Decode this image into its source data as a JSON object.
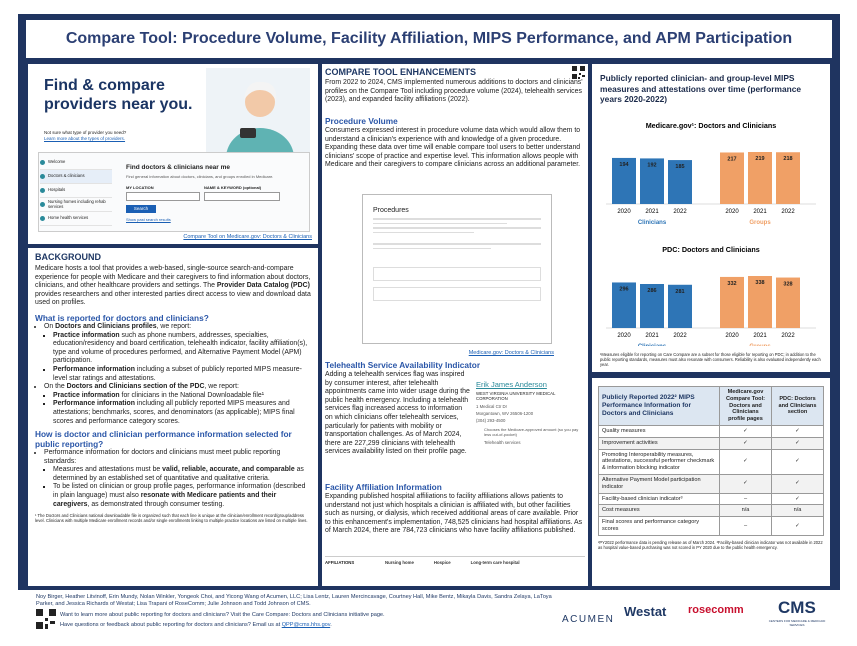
{
  "title": "Compare Tool: Procedure Volume, Facility Affiliation, MIPS Performance, and APM Participation",
  "find": {
    "heading": "Find & compare providers near you.",
    "question": "Not sure what type of provider you need?",
    "learn": "Learn more about the types of providers.",
    "nav": [
      "Welcome",
      "Doctors & clinicians",
      "Hospitals",
      "Nursing homes including rehab services",
      "Home health services"
    ],
    "search_title": "Find doctors & clinicians near me",
    "search_sub": "Find general information about doctors, clinicians, and groups enrolled in Medicare.",
    "location": "MY LOCATION",
    "keyword": "NAME & KEYWORD (optional)",
    "button": "Search",
    "past": "Show past search results",
    "caption": "Compare Tool on Medicare.gov: Doctors & Clinicians"
  },
  "background": {
    "heading": "BACKGROUND",
    "intro": [
      "Medicare hosts a tool that provides a web-based, single-source search-and-compare experience for people with Medicare and their caregivers to find information about doctors, clinicians, and other healthcare providers and settings. The ",
      {
        "bold": "Provider Data Catalog (PDC)"
      },
      " provides researchers and other interested parties direct access to view and download data used on profiles."
    ],
    "q1": "What is reported for doctors and clinicians?",
    "q1_items": [
      {
        "text": [
          "On ",
          {
            "bold": "Doctors and Clinicians profiles"
          },
          ", we report:"
        ],
        "sub": [
          [
            {
              "bold": "Practice information"
            },
            " such as phone numbers, addresses, specialties, education/residency and board certification, telehealth indicator, facility affiliation(s), type and volume of procedures performed, and Alternative Payment Model (APM) participation."
          ],
          [
            {
              "bold": "Performance information"
            },
            " including a subset of publicly reported MIPS measure-level star ratings and attestations."
          ]
        ]
      },
      {
        "text": [
          "On the ",
          {
            "bold": "Doctors and Clinicians section of the PDC"
          },
          ", we report:"
        ],
        "sub": [
          [
            {
              "bold": "Practice information"
            },
            " for clinicians in the National Downloadable file¹"
          ],
          [
            {
              "bold": "Performance information"
            },
            " including all publicly reported MIPS measures and attestations; benchmarks, scores, and denominators (as applicable); MIPS final scores and performance category scores."
          ]
        ]
      }
    ],
    "q2": "How is doctor and clinician performance information selected for public reporting?",
    "q2_items": [
      {
        "text": [
          "Performance information for doctors and clinicians must meet public reporting standards:"
        ],
        "sub": [
          [
            "Measures and attestations must be ",
            {
              "bold": "valid, reliable, accurate, and comparable"
            },
            " as determined by an established set of quantitative and qualitative criteria."
          ],
          [
            "To be listed on clinician or group profile pages, performance information (described in plain language) must also ",
            {
              "bold": "resonate with Medicare patients and their caregivers"
            },
            ", as demonstrated through consumer testing."
          ]
        ]
      }
    ],
    "footnote": "¹ The Doctors and Clinicians national downloadable file is organized such that each line is unique at the clinician/enrollment record/group/address level. Clinicians with multiple Medicare enrollment records and/or single enrollments linking to multiple practice locations are listed on multiple lines."
  },
  "enhancements": {
    "heading": "COMPARE TOOL ENHANCEMENTS",
    "intro": "From 2022 to 2024, CMS implemented numerous additions to doctors and clinicians' profiles on the Compare Tool including procedure volume (2024), telehealth services (2023), and expanded facility affiliations (2022).",
    "pv_heading": "Procedure Volume",
    "pv_text": "Consumers expressed interest in procedure volume data which would allow them to understand a clinician's experience with and knowledge of a given procedure. Expanding these data over time will enable compare tool users to better understand clinicians' scope of practice and expertise level. This information allows people with Medicare and their caregivers to compare clinicians across an additional parameter.",
    "pv_shot_title": "Procedures",
    "pv_caption": "Medicare.gov: Doctors & Clinicians",
    "th_heading": "Telehealth Service Availability Indicator",
    "th_text": "Adding a telehealth services flag was inspired by consumer interest, after telehealth appointments came into wider usage during the public health emergency. Including a telehealth services flag increased access to information on which clinicians offer telehealth services, particularly for patients with mobility or transportation challenges. As of March 2024, there are 227,299 clinicians with telehealth services availability listed on their profile page.",
    "card": {
      "name": "Erik James Anderson",
      "org": "WEST VIRGINIA UNIVERSITY MEDICAL CORPORATION",
      "address": "1 Medical Ctr Dr",
      "city": "Morgantown, WV 26506-1200",
      "phone": "(304) 293-4500",
      "assign": "Chooses the Medicare-approved amount (so you pay less out-of-pocket)",
      "telehealth": "Telehealth services"
    },
    "fa_heading": "Facility Affiliation Information",
    "fa_text": "Expanding published hospital affiliations to facility affiliations allows patients to understand not just which hospitals a clinician is affiliated with, but other facilities such as nursing, or dialysis, which received additional areas of care available. Prior to this enhancement's implementation, 748,525 clinicians had hospital affiliations. As of March 2024, there are 784,723 clinicians who have facility affiliations published.",
    "aff_label": "AFFILIATIONS",
    "aff_types": [
      "Nursing home",
      "Hospice",
      "Long-term care hospital"
    ]
  },
  "mips": {
    "heading": "Publicly reported clinician- and group-level MIPS measures and attestations over time (performance years 2020-2022)",
    "footnote": "¹Measures eligible for reporting on Care Compare are a subset for those eligible for reporting on PDC; in addition to the public reporting standards, measures must also resonate with consumers. Reliability is also evaluated independently each year."
  },
  "chart_data": [
    {
      "type": "bar",
      "title": "Medicare.gov¹: Doctors and Clinicians",
      "categories": [
        "2020",
        "2021",
        "2022"
      ],
      "series": [
        {
          "name": "Clinicians",
          "color": "#2e75b6",
          "values": [
            194,
            192,
            185
          ]
        },
        {
          "name": "Groups",
          "color": "#f0a066",
          "values": [
            217,
            219,
            218
          ]
        }
      ]
    },
    {
      "type": "bar",
      "title": "PDC: Doctors and Clinicians",
      "categories": [
        "2020",
        "2021",
        "2022"
      ],
      "series": [
        {
          "name": "Clinicians",
          "color": "#2e75b6",
          "values": [
            296,
            286,
            281
          ]
        },
        {
          "name": "Groups",
          "color": "#f0a066",
          "values": [
            332,
            338,
            328
          ]
        }
      ]
    }
  ],
  "table": {
    "header": [
      "Publicly Reported 2022² MIPS Performance Information for Doctors and Clinicians",
      "Medicare.gov Compare Tool: Doctors and Clinicians profile pages",
      "PDC: Doctors and Clinicians section"
    ],
    "rows": [
      [
        "Quality measures",
        "✓",
        "✓"
      ],
      [
        "Improvement activities",
        "✓",
        "✓"
      ],
      [
        "Promoting Interoperability measures, attestations, successful performer checkmark & information blocking indicator",
        "✓",
        "✓"
      ],
      [
        "Alternative Payment Model participation indicator",
        "✓",
        "✓"
      ],
      [
        "Facility-based clinician indicator³",
        "–",
        "✓"
      ],
      [
        "Cost measures",
        "n/a",
        "n/a"
      ],
      [
        "Final scores and performance category scores",
        "–",
        "✓"
      ]
    ],
    "footnote": "²PY2022 performance data is pending release as of March 2024. ³Facility-based clinician indicator was not available in 2022 as hospital value-based purchasing was not scored in PY 2020 due to the public health emergency."
  },
  "footer": {
    "authors": "Noy Birger, Heather Litvinoff, Erin Mundy, Nolan Winkler, Yongeok Choi, and Yicong Wang of Acumen, LLC; Lisa Lentz, Lauren Mercincavage, Courtney Hall, Mike Bentz, Mikayla Davis, Sandra Zelaya, LaToya Parker, and Jessica Richards of Westat; Lisa Trapani of RoseComm; Julie Johnson and Todd Johnson of CMS.",
    "learn": "Want to learn more about public reporting for doctors and clinicians? Visit the Care Compare: Doctors and Clinicians initiative page.",
    "questions": [
      "Have questions or feedback about public reporting for doctors and clinicians? Email us at ",
      {
        "link": "QPP@cms.hhs.gov"
      },
      "."
    ],
    "logos": [
      "ACUMEN",
      "Westat",
      "rosecomm",
      "CMS"
    ],
    "cms_sub": "CENTERS FOR MEDICARE & MEDICAID SERVICES"
  }
}
